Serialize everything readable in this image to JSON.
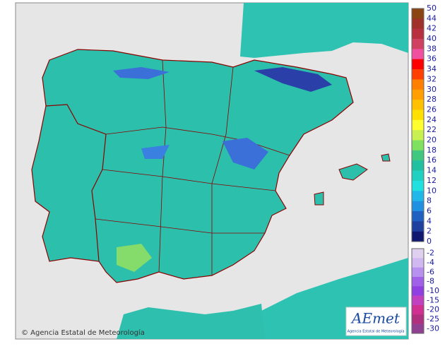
{
  "legend": {
    "positive": {
      "labels": [
        "50",
        "44",
        "42",
        "40",
        "38",
        "36",
        "34",
        "32",
        "30",
        "28",
        "26",
        "24",
        "22",
        "20",
        "18",
        "16",
        "14",
        "12",
        "10",
        "8",
        "6",
        "4",
        "2",
        "0"
      ],
      "colors": [
        "#8b4513",
        "#a0302a",
        "#b83040",
        "#d04060",
        "#f050a0",
        "#ff0000",
        "#ff4000",
        "#ff8000",
        "#ffa000",
        "#ffc000",
        "#ffe000",
        "#ffff30",
        "#c8f050",
        "#80e060",
        "#40c880",
        "#20c0a0",
        "#20d0c0",
        "#20e0e0",
        "#20b8e8",
        "#2090e0",
        "#2060c0",
        "#2040a0",
        "#101870"
      ]
    },
    "negative": {
      "labels": [
        "-2",
        "-4",
        "-6",
        "-8",
        "-10",
        "-15",
        "-20",
        "-25",
        "-30"
      ],
      "colors": [
        "#e0d0f0",
        "#d0b8f0",
        "#b890f0",
        "#a060e8",
        "#9040e0",
        "#c040c0",
        "#d03090",
        "#b03080",
        "#904090"
      ]
    }
  },
  "footer": {
    "copyright": "© Agencia Estatal de Meteorología"
  },
  "logo": {
    "name": "AEmet",
    "subtitle": "Agencia Estatal de Meteorología"
  }
}
